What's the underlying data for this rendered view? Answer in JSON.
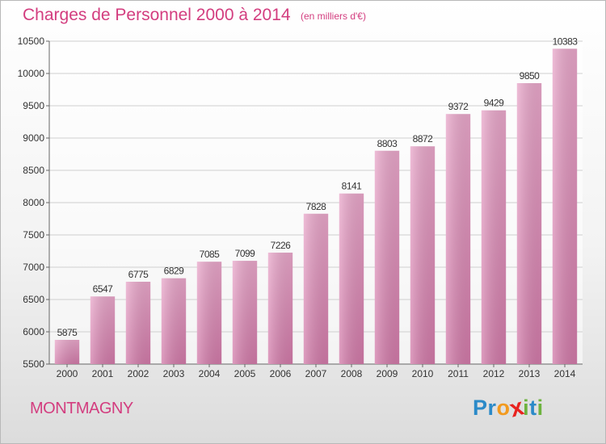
{
  "chart_data": {
    "type": "bar",
    "title": "Charges de Personnel 2000 à 2014",
    "subtitle": "(en milliers d'€)",
    "categories": [
      "2000",
      "2001",
      "2002",
      "2003",
      "2004",
      "2005",
      "2006",
      "2007",
      "2008",
      "2009",
      "2010",
      "2011",
      "2012",
      "2013",
      "2014"
    ],
    "values": [
      5875,
      6547,
      6775,
      6829,
      7085,
      7099,
      7226,
      7828,
      8141,
      8803,
      8872,
      9372,
      9429,
      9850,
      10383
    ],
    "ylim": [
      5500,
      10500
    ],
    "yticks": [
      5500,
      6000,
      6500,
      7000,
      7500,
      8000,
      8500,
      9000,
      9500,
      10000,
      10500
    ],
    "grid": true,
    "bar_color": "#d27aa9"
  },
  "footer": {
    "place": "MONTMAGNY",
    "logo_letters": [
      "P",
      "r",
      "o",
      "x",
      "i",
      "t",
      "i"
    ],
    "logo_colors": [
      "#2b8ac8",
      "#2b8ac8",
      "#f29a1f",
      "#e8231f",
      "#6db33f",
      "#2b8ac8",
      "#6db33f"
    ]
  }
}
